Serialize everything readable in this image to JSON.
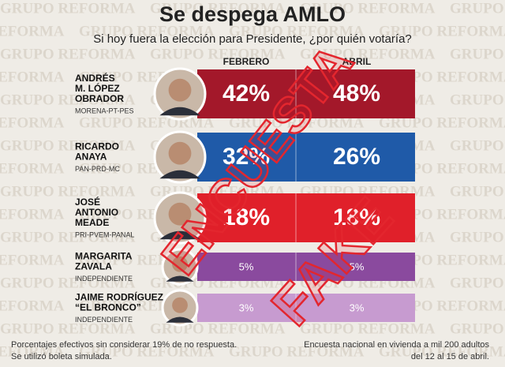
{
  "header": {
    "title": "Se despega AMLO",
    "subtitle": "Si hoy fuera la elección para Presidente, ¿por quién votaría?"
  },
  "watermark": "GRUPO REFORMA",
  "columns": [
    "FEBRERO",
    "ABRIL"
  ],
  "rows": [
    {
      "name": [
        "ANDRÉS",
        "M. LÓPEZ",
        "OBRADOR"
      ],
      "party": "MORENA-PT-PES",
      "values": [
        "42%",
        "48%"
      ]
    },
    {
      "name": [
        "RICARDO",
        "ANAYA"
      ],
      "party": "PAN-PRD-MC",
      "values": [
        "32%",
        "26%"
      ]
    },
    {
      "name": [
        "JOSÉ",
        "ANTONIO",
        "MEADE"
      ],
      "party": "PRI-PVEM-PANAL",
      "values": [
        "18%",
        "18%"
      ]
    },
    {
      "name": [
        "MARGARITA",
        "ZAVALA"
      ],
      "party": "INDEPENDIENTE",
      "values": [
        "5%",
        "5%"
      ]
    },
    {
      "name": [
        "JAIME RODRÍGUEZ",
        "“EL BRONCO”"
      ],
      "party": "INDEPENDIENTE",
      "values": [
        "3%",
        "3%"
      ]
    }
  ],
  "stamp": [
    "ENCUESTA",
    "FAKE"
  ],
  "footnotes": {
    "left": [
      "Porcentajes efectivos sin considerar 19% de no respuesta.",
      "Se utilizó boleta simulada."
    ],
    "right": [
      "Encuesta nacional en vivienda a mil 200 adultos",
      "del 12 al 15 de abril."
    ]
  }
}
